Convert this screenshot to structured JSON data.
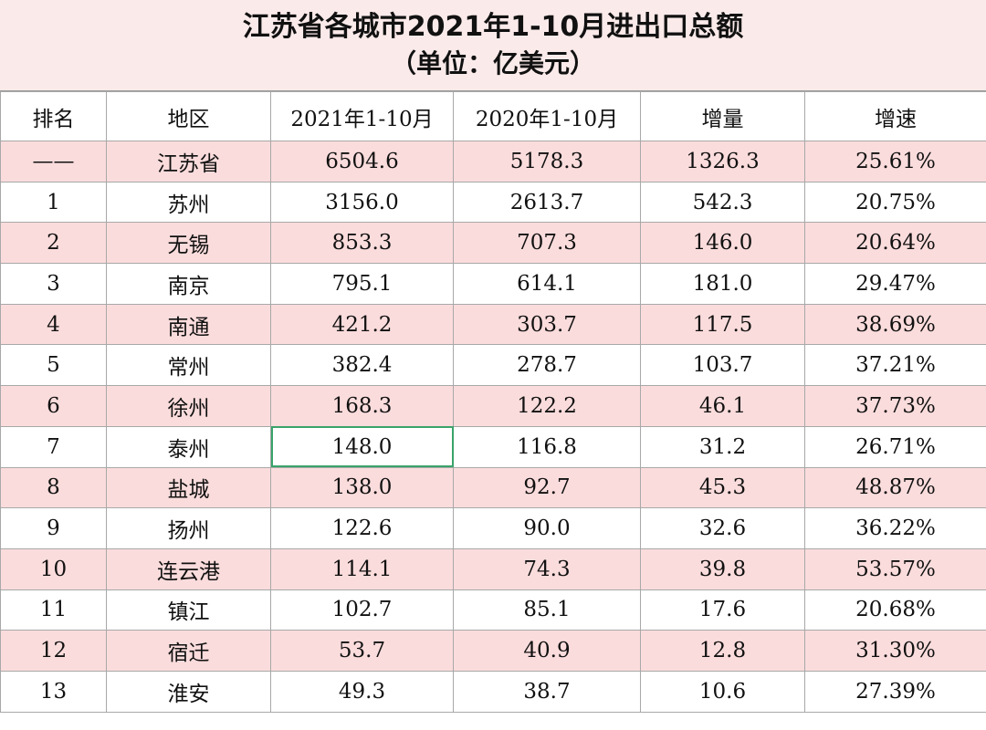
{
  "title": "江苏省各城市2021年1-10月进出口总额",
  "subtitle": "（单位：亿美元）",
  "columns": [
    "排名",
    "地区",
    "2021年1-10月",
    "2020年1-10月",
    "增量",
    "增速"
  ],
  "rows": [
    {
      "rank": "——",
      "area": "江苏省",
      "y2021": "6504.6",
      "y2020": "5178.3",
      "increase": "1326.3",
      "rate": "25.61%"
    },
    {
      "rank": "1",
      "area": "苏州",
      "y2021": "3156.0",
      "y2020": "2613.7",
      "increase": "542.3",
      "rate": "20.75%"
    },
    {
      "rank": "2",
      "area": "无锡",
      "y2021": "853.3",
      "y2020": "707.3",
      "increase": "146.0",
      "rate": "20.64%"
    },
    {
      "rank": "3",
      "area": "南京",
      "y2021": "795.1",
      "y2020": "614.1",
      "increase": "181.0",
      "rate": "29.47%"
    },
    {
      "rank": "4",
      "area": "南通",
      "y2021": "421.2",
      "y2020": "303.7",
      "increase": "117.5",
      "rate": "38.69%"
    },
    {
      "rank": "5",
      "area": "常州",
      "y2021": "382.4",
      "y2020": "278.7",
      "increase": "103.7",
      "rate": "37.21%"
    },
    {
      "rank": "6",
      "area": "徐州",
      "y2021": "168.3",
      "y2020": "122.2",
      "increase": "46.1",
      "rate": "37.73%"
    },
    {
      "rank": "7",
      "area": "泰州",
      "y2021": "148.0",
      "y2020": "116.8",
      "increase": "31.2",
      "rate": "26.71%"
    },
    {
      "rank": "8",
      "area": "盐城",
      "y2021": "138.0",
      "y2020": "92.7",
      "increase": "45.3",
      "rate": "48.87%"
    },
    {
      "rank": "9",
      "area": "扬州",
      "y2021": "122.6",
      "y2020": "90.0",
      "increase": "32.6",
      "rate": "36.22%"
    },
    {
      "rank": "10",
      "area": "连云港",
      "y2021": "114.1",
      "y2020": "74.3",
      "increase": "39.8",
      "rate": "53.57%"
    },
    {
      "rank": "11",
      "area": "镇江",
      "y2021": "102.7",
      "y2020": "85.1",
      "increase": "17.6",
      "rate": "20.68%"
    },
    {
      "rank": "12",
      "area": "宿迁",
      "y2021": "53.7",
      "y2020": "40.9",
      "increase": "12.8",
      "rate": "31.30%"
    },
    {
      "rank": "13",
      "area": "淮安",
      "y2021": "49.3",
      "y2020": "38.7",
      "increase": "10.6",
      "rate": "27.39%"
    }
  ],
  "colors": {
    "title_bg": "#fbeaea",
    "row_pink": "#fbdcdc",
    "row_white": "#ffffff",
    "selected_cell_border": "#3aa36a",
    "grid": "#a8a8a8"
  }
}
